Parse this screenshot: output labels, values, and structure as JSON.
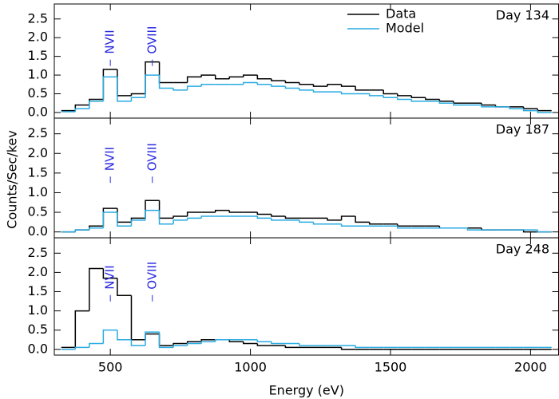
{
  "chart_data": [
    {
      "type": "histogram",
      "annotation": "Day 134",
      "legend": "upper right",
      "lines": [
        {
          "text": "NVII",
          "x": 500
        },
        {
          "text": "OVIII",
          "x": 650
        }
      ],
      "bins": [
        325,
        375,
        425,
        475,
        525,
        575,
        625,
        675,
        725,
        775,
        825,
        875,
        925,
        975,
        1025,
        1075,
        1125,
        1175,
        1225,
        1275,
        1325,
        1375,
        1425,
        1475,
        1525,
        1575,
        1625,
        1675,
        1725,
        1775,
        1825,
        1875,
        1925,
        1975,
        2025,
        2075
      ],
      "series": [
        {
          "name": "Data",
          "color": "#000000",
          "values": [
            0.05,
            0.2,
            0.35,
            1.15,
            0.45,
            0.5,
            1.35,
            0.8,
            0.8,
            0.95,
            1.0,
            0.9,
            0.95,
            1.0,
            0.9,
            0.85,
            0.8,
            0.75,
            0.7,
            0.75,
            0.7,
            0.6,
            0.6,
            0.5,
            0.45,
            0.4,
            0.35,
            0.3,
            0.25,
            0.25,
            0.2,
            0.15,
            0.15,
            0.1,
            0.05
          ]
        },
        {
          "name": "Model",
          "color": "#29abe2",
          "values": [
            0.02,
            0.1,
            0.3,
            0.95,
            0.3,
            0.4,
            1.0,
            0.65,
            0.6,
            0.7,
            0.75,
            0.75,
            0.75,
            0.8,
            0.75,
            0.7,
            0.65,
            0.6,
            0.55,
            0.55,
            0.5,
            0.5,
            0.45,
            0.4,
            0.35,
            0.3,
            0.3,
            0.25,
            0.2,
            0.2,
            0.15,
            0.15,
            0.1,
            0.05,
            0
          ]
        }
      ],
      "xlim": [
        300,
        2100
      ],
      "xticks": [
        500,
        1000,
        1500,
        2000
      ],
      "ylim": [
        -0.15,
        2.9
      ],
      "yticks": [
        {
          "value": 0,
          "label": "0.0"
        },
        0.5,
        {
          "value": 1,
          "label": "1.0"
        },
        1.5,
        {
          "value": 2,
          "label": "2.0"
        },
        2.5
      ]
    },
    {
      "type": "histogram",
      "annotation": "Day 187",
      "ylabel": "Counts/Sec/kev",
      "lines": [
        {
          "text": "NVII",
          "x": 500
        },
        {
          "text": "OVIII",
          "x": 650
        }
      ],
      "bins": [
        325,
        375,
        425,
        475,
        525,
        575,
        625,
        675,
        725,
        775,
        825,
        875,
        925,
        975,
        1025,
        1075,
        1125,
        1175,
        1225,
        1275,
        1325,
        1375,
        1425,
        1475,
        1525,
        1575,
        1625,
        1675,
        1725,
        1775,
        1825,
        1875,
        1925,
        1975,
        2025,
        2075
      ],
      "series": [
        {
          "color": "#000000",
          "values": [
            0,
            0.05,
            0.15,
            0.6,
            0.25,
            0.35,
            0.8,
            0.35,
            0.4,
            0.5,
            0.5,
            0.55,
            0.5,
            0.5,
            0.45,
            0.4,
            0.35,
            0.35,
            0.35,
            0.3,
            0.4,
            0.25,
            0.2,
            0.2,
            0.15,
            0.15,
            0.15,
            0.1,
            0.1,
            0.1,
            0.05,
            0.05,
            0.05,
            0,
            0
          ]
        },
        {
          "color": "#29abe2",
          "values": [
            0,
            0.05,
            0.1,
            0.5,
            0.15,
            0.3,
            0.55,
            0.2,
            0.3,
            0.35,
            0.4,
            0.4,
            0.4,
            0.4,
            0.35,
            0.3,
            0.3,
            0.25,
            0.2,
            0.2,
            0.15,
            0.15,
            0.15,
            0.15,
            0.1,
            0.1,
            0.1,
            0.1,
            0.1,
            0.05,
            0.05,
            0.05,
            0.05,
            0.05,
            0
          ]
        }
      ],
      "xlim": [
        300,
        2100
      ],
      "xticks": [
        500,
        1000,
        1500,
        2000
      ],
      "ylim": [
        -0.15,
        2.9
      ],
      "yticks": [
        {
          "value": 0,
          "label": "0.0"
        },
        0.5,
        {
          "value": 1,
          "label": "1.0"
        },
        1.5,
        {
          "value": 2,
          "label": "2.0"
        },
        2.5
      ]
    },
    {
      "type": "histogram",
      "annotation": "Day 248",
      "xlabel": "Energy (eV)",
      "lines": [
        {
          "text": "NVII",
          "x": 500
        },
        {
          "text": "OVIII",
          "x": 650
        }
      ],
      "bins": [
        325,
        375,
        425,
        475,
        525,
        575,
        625,
        675,
        725,
        775,
        825,
        875,
        925,
        975,
        1025,
        1075,
        1125,
        1175,
        1225,
        1275,
        1325,
        1375,
        1425,
        1475,
        1525,
        1575,
        1625,
        1675,
        1725,
        1775,
        1825,
        1875,
        1925,
        1975,
        2025,
        2075
      ],
      "series": [
        {
          "color": "#000000",
          "values": [
            0.05,
            1.0,
            2.1,
            1.85,
            1.4,
            0.25,
            0.4,
            0.1,
            0.15,
            0.2,
            0.25,
            0.25,
            0.2,
            0.15,
            0.1,
            0.1,
            0.05,
            0.05,
            0.05,
            0.05,
            0,
            0,
            0,
            0,
            0,
            0,
            0,
            0,
            0,
            0,
            0,
            0,
            0,
            0,
            0
          ]
        },
        {
          "color": "#29abe2",
          "values": [
            0,
            0.05,
            0.15,
            0.5,
            0.25,
            0.1,
            0.45,
            0.05,
            0.1,
            0.15,
            0.2,
            0.25,
            0.25,
            0.25,
            0.2,
            0.15,
            0.15,
            0.1,
            0.1,
            0.1,
            0.1,
            0.05,
            0.05,
            0.05,
            0.05,
            0.05,
            0.05,
            0.05,
            0.05,
            0.05,
            0.05,
            0.05,
            0.05,
            0.05,
            0.05
          ]
        }
      ],
      "xlim": [
        300,
        2100
      ],
      "xticks": [
        500,
        1000,
        1500,
        2000
      ],
      "ylim": [
        -0.15,
        2.9
      ],
      "yticks": [
        {
          "value": 0,
          "label": "0.0"
        },
        0.5,
        {
          "value": 1,
          "label": "1.0"
        },
        1.5,
        {
          "value": 2,
          "label": "2.0"
        },
        2.5
      ]
    }
  ]
}
